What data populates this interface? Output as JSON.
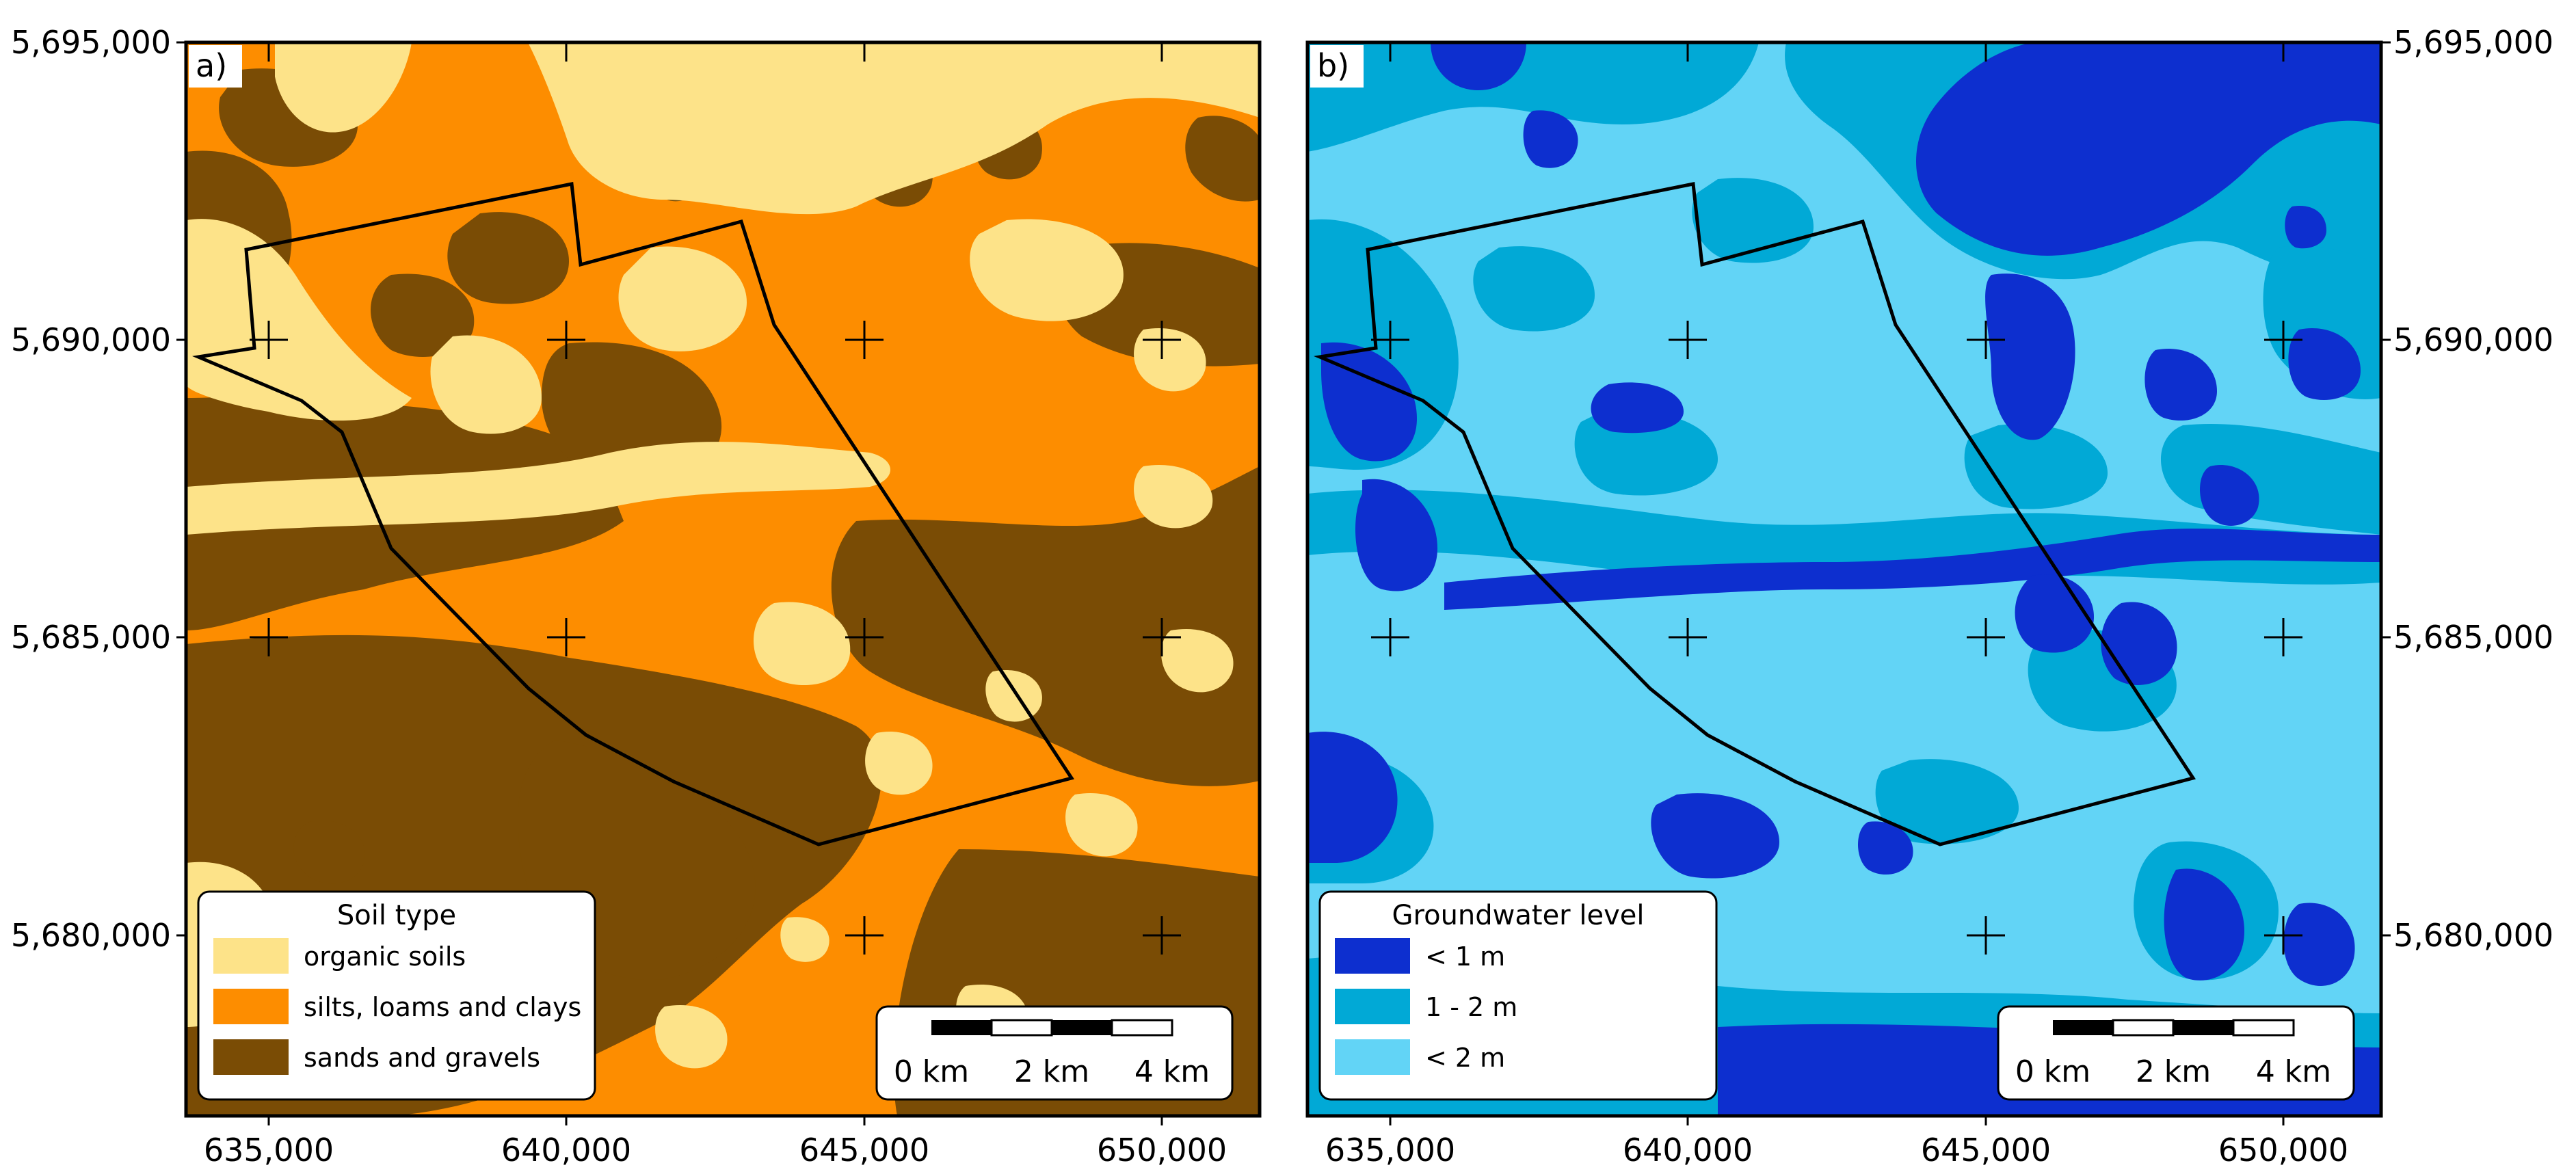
{
  "panels": [
    {
      "id": "a",
      "tag": "a)",
      "legend": {
        "title": "Soil type",
        "items": [
          {
            "label": "organic soils",
            "color": "#fde389"
          },
          {
            "label": "silts, loams and clays",
            "color": "#fd8d00"
          },
          {
            "label": "sands and gravels",
            "color": "#7a4c05"
          }
        ]
      },
      "palette": {
        "light": "#fde389",
        "mid": "#fd8d00",
        "dark": "#7a4c05"
      }
    },
    {
      "id": "b",
      "tag": "b)",
      "legend": {
        "title": "Groundwater level",
        "items": [
          {
            "label": "< 1 m",
            "color": "#0d2fcf"
          },
          {
            "label": "1 - 2 m",
            "color": "#01a9d6"
          },
          {
            "label": "< 2 m",
            "color": "#62d4f6"
          }
        ]
      },
      "palette": {
        "light": "#62d4f6",
        "mid": "#01a9d6",
        "dark": "#0d2fcf"
      }
    }
  ],
  "axes": {
    "x_ticks": [
      "635,000",
      "640,000",
      "645,000",
      "650,000"
    ],
    "y_ticks": [
      "5,695,000",
      "5,690,000",
      "5,685,000",
      "5,680,000"
    ]
  },
  "scalebar": {
    "labels": [
      "0 km",
      "2 km",
      "4 km"
    ]
  },
  "colors": {
    "boundary": "#000000",
    "frame": "#000000"
  }
}
